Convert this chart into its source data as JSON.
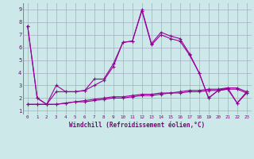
{
  "xlabel": "Windchill (Refroidissement éolien,°C)",
  "background_color": "#cce8e8",
  "grid_color": "#aaaacc",
  "line_color": "#990099",
  "x_ticks": [
    0,
    1,
    2,
    3,
    4,
    5,
    6,
    7,
    8,
    9,
    10,
    11,
    12,
    13,
    14,
    15,
    16,
    17,
    18,
    19,
    20,
    21,
    22,
    23
  ],
  "y_ticks": [
    1,
    2,
    3,
    4,
    5,
    6,
    7,
    8,
    9
  ],
  "ylim": [
    0.7,
    9.5
  ],
  "xlim": [
    -0.5,
    23.5
  ],
  "series": [
    [
      7.7,
      2.0,
      1.5,
      3.0,
      2.5,
      2.5,
      2.6,
      3.5,
      3.5,
      4.7,
      6.4,
      6.5,
      9.0,
      6.3,
      7.2,
      6.9,
      6.7,
      5.5,
      4.0,
      2.0,
      2.6,
      2.8,
      1.6,
      2.5
    ],
    [
      7.7,
      2.0,
      1.5,
      2.5,
      2.5,
      2.5,
      2.6,
      3.0,
      3.4,
      4.5,
      6.4,
      6.5,
      8.9,
      6.2,
      7.0,
      6.7,
      6.5,
      5.4,
      4.0,
      2.0,
      2.6,
      2.7,
      1.6,
      2.4
    ],
    [
      1.5,
      1.5,
      1.5,
      1.5,
      1.6,
      1.7,
      1.8,
      1.9,
      2.0,
      2.1,
      2.1,
      2.2,
      2.3,
      2.3,
      2.4,
      2.4,
      2.5,
      2.6,
      2.6,
      2.7,
      2.7,
      2.8,
      2.8,
      2.5
    ],
    [
      1.5,
      1.5,
      1.5,
      1.5,
      1.6,
      1.7,
      1.7,
      1.8,
      1.9,
      2.0,
      2.0,
      2.1,
      2.2,
      2.2,
      2.3,
      2.4,
      2.4,
      2.5,
      2.5,
      2.6,
      2.6,
      2.7,
      2.7,
      2.4
    ]
  ]
}
